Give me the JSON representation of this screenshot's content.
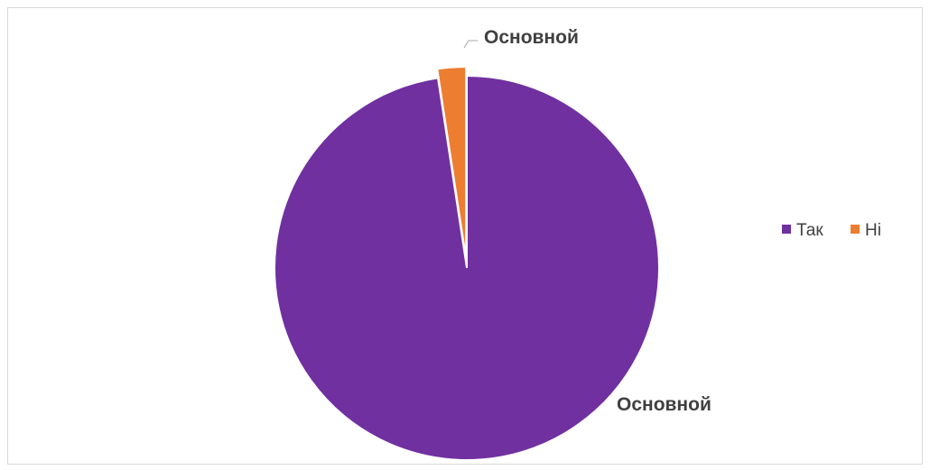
{
  "chart_data": {
    "type": "pie",
    "categories": [
      "Так",
      "Ні"
    ],
    "values": [
      97.6,
      2.4
    ],
    "data_labels": [
      "Основной",
      "Основной"
    ],
    "colors": [
      "#7030A0",
      "#ED7D31"
    ],
    "exploded_slice": "Ні",
    "legend": {
      "placement": "right",
      "entries": [
        "Так",
        "Ні"
      ]
    }
  }
}
